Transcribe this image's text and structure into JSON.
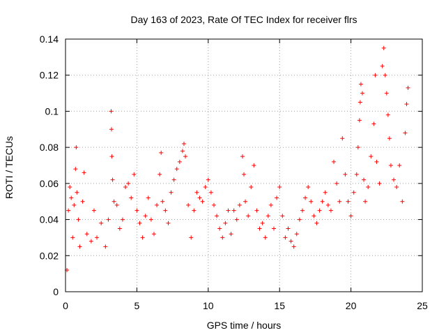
{
  "chart_data": {
    "type": "scatter",
    "title": "Day 163 of 2023, Rate Of TEC Index for receiver flrs",
    "xlabel": "GPS time / hours",
    "ylabel": "ROTI / TECUs",
    "xlim": [
      0,
      25
    ],
    "ylim": [
      0,
      0.14
    ],
    "x_ticks": [
      0,
      5,
      10,
      15,
      20,
      25
    ],
    "x_tick_labels": [
      "0",
      "5",
      "10",
      "15",
      "20",
      "25"
    ],
    "y_ticks": [
      0,
      0.02,
      0.04,
      0.06,
      0.08,
      0.1,
      0.12,
      0.14
    ],
    "y_tick_labels": [
      "0",
      "0.02",
      "0.04",
      "0.06",
      "0.08",
      "0.1",
      "0.12",
      "0.14"
    ],
    "grid": true,
    "marker": "+",
    "color": "#ff0000",
    "series": [
      {
        "name": "ROTI",
        "points": [
          [
            0.1,
            0.012
          ],
          [
            0.2,
            0.045
          ],
          [
            0.3,
            0.058
          ],
          [
            0.4,
            0.052
          ],
          [
            0.5,
            0.03
          ],
          [
            0.6,
            0.048
          ],
          [
            0.7,
            0.068
          ],
          [
            0.75,
            0.08
          ],
          [
            0.8,
            0.055
          ],
          [
            0.9,
            0.04
          ],
          [
            1.0,
            0.025
          ],
          [
            1.2,
            0.05
          ],
          [
            1.3,
            0.066
          ],
          [
            1.5,
            0.032
          ],
          [
            1.8,
            0.028
          ],
          [
            2.0,
            0.045
          ],
          [
            2.2,
            0.03
          ],
          [
            2.5,
            0.038
          ],
          [
            2.8,
            0.025
          ],
          [
            3.0,
            0.04
          ],
          [
            3.2,
            0.1
          ],
          [
            3.22,
            0.09
          ],
          [
            3.25,
            0.075
          ],
          [
            3.3,
            0.062
          ],
          [
            3.4,
            0.05
          ],
          [
            3.6,
            0.048
          ],
          [
            3.8,
            0.035
          ],
          [
            4.0,
            0.04
          ],
          [
            4.2,
            0.058
          ],
          [
            4.4,
            0.06
          ],
          [
            4.6,
            0.052
          ],
          [
            4.8,
            0.065
          ],
          [
            5.0,
            0.045
          ],
          [
            5.2,
            0.038
          ],
          [
            5.4,
            0.03
          ],
          [
            5.6,
            0.042
          ],
          [
            5.8,
            0.052
          ],
          [
            6.0,
            0.04
          ],
          [
            6.2,
            0.032
          ],
          [
            6.4,
            0.048
          ],
          [
            6.6,
            0.065
          ],
          [
            6.7,
            0.077
          ],
          [
            6.8,
            0.05
          ],
          [
            7.0,
            0.045
          ],
          [
            7.2,
            0.038
          ],
          [
            7.4,
            0.055
          ],
          [
            7.6,
            0.062
          ],
          [
            7.8,
            0.068
          ],
          [
            8.0,
            0.072
          ],
          [
            8.2,
            0.078
          ],
          [
            8.3,
            0.082
          ],
          [
            8.4,
            0.075
          ],
          [
            8.6,
            0.048
          ],
          [
            8.8,
            0.03
          ],
          [
            9.0,
            0.045
          ],
          [
            9.2,
            0.055
          ],
          [
            9.4,
            0.052
          ],
          [
            9.6,
            0.05
          ],
          [
            9.8,
            0.058
          ],
          [
            10.0,
            0.062
          ],
          [
            10.2,
            0.055
          ],
          [
            10.4,
            0.048
          ],
          [
            10.6,
            0.042
          ],
          [
            10.8,
            0.035
          ],
          [
            11.0,
            0.03
          ],
          [
            11.2,
            0.038
          ],
          [
            11.4,
            0.045
          ],
          [
            11.6,
            0.032
          ],
          [
            11.8,
            0.045
          ],
          [
            12.0,
            0.04
          ],
          [
            12.2,
            0.048
          ],
          [
            12.4,
            0.075
          ],
          [
            12.5,
            0.065
          ],
          [
            12.6,
            0.05
          ],
          [
            12.8,
            0.042
          ],
          [
            13.0,
            0.058
          ],
          [
            13.2,
            0.07
          ],
          [
            13.4,
            0.045
          ],
          [
            13.6,
            0.035
          ],
          [
            13.8,
            0.038
          ],
          [
            14.0,
            0.03
          ],
          [
            14.2,
            0.042
          ],
          [
            14.4,
            0.048
          ],
          [
            14.6,
            0.035
          ],
          [
            14.8,
            0.052
          ],
          [
            15.0,
            0.058
          ],
          [
            15.2,
            0.042
          ],
          [
            15.4,
            0.03
          ],
          [
            15.6,
            0.035
          ],
          [
            15.8,
            0.028
          ],
          [
            16.0,
            0.025
          ],
          [
            16.2,
            0.032
          ],
          [
            16.4,
            0.04
          ],
          [
            16.6,
            0.045
          ],
          [
            16.8,
            0.052
          ],
          [
            17.0,
            0.058
          ],
          [
            17.2,
            0.05
          ],
          [
            17.4,
            0.042
          ],
          [
            17.6,
            0.038
          ],
          [
            17.8,
            0.045
          ],
          [
            18.0,
            0.05
          ],
          [
            18.2,
            0.055
          ],
          [
            18.4,
            0.048
          ],
          [
            18.6,
            0.045
          ],
          [
            18.8,
            0.072
          ],
          [
            19.0,
            0.06
          ],
          [
            19.2,
            0.05
          ],
          [
            19.4,
            0.085
          ],
          [
            19.6,
            0.065
          ],
          [
            19.8,
            0.05
          ],
          [
            20.0,
            0.042
          ],
          [
            20.2,
            0.055
          ],
          [
            20.4,
            0.065
          ],
          [
            20.5,
            0.08
          ],
          [
            20.6,
            0.095
          ],
          [
            20.65,
            0.105
          ],
          [
            20.7,
            0.115
          ],
          [
            20.8,
            0.11
          ],
          [
            20.9,
            0.062
          ],
          [
            21.0,
            0.05
          ],
          [
            21.2,
            0.058
          ],
          [
            21.4,
            0.075
          ],
          [
            21.6,
            0.093
          ],
          [
            21.7,
            0.12
          ],
          [
            21.8,
            0.072
          ],
          [
            22.0,
            0.06
          ],
          [
            22.2,
            0.125
          ],
          [
            22.3,
            0.135
          ],
          [
            22.4,
            0.12
          ],
          [
            22.5,
            0.11
          ],
          [
            22.6,
            0.098
          ],
          [
            22.7,
            0.085
          ],
          [
            22.8,
            0.07
          ],
          [
            23.0,
            0.062
          ],
          [
            23.2,
            0.058
          ],
          [
            23.4,
            0.07
          ],
          [
            23.6,
            0.05
          ],
          [
            23.8,
            0.088
          ],
          [
            23.9,
            0.104
          ],
          [
            24.0,
            0.113
          ]
        ]
      }
    ]
  }
}
